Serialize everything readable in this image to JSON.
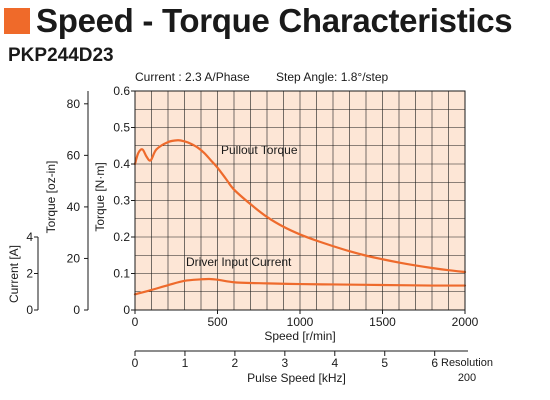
{
  "title": "Speed - Torque Characteristics",
  "model": "PKP244D23",
  "colors": {
    "accent": "#ef6a2a",
    "plot_background": "#fde6d6",
    "curve": "#ee6a2c",
    "grid": "#1a1a1a"
  },
  "chart_data": {
    "type": "line",
    "annotations": {
      "current": "Current : 2.3 A/Phase",
      "step_angle": "Step Angle: 1.8°/step",
      "resolution_label": "Resolution",
      "resolution_value": "200"
    },
    "xlabel": "Speed [r/min]",
    "xlim": [
      0,
      2000
    ],
    "xticks": [
      "0",
      "500",
      "1000",
      "1500",
      "2000"
    ],
    "x2label": "Pulse Speed [kHz]",
    "x2lim": [
      0,
      6.667
    ],
    "x2ticks": [
      "0",
      "1",
      "2",
      "3",
      "4",
      "5",
      "6"
    ],
    "ylabel": "Torque [N·m]",
    "ylim": [
      0,
      0.6
    ],
    "yticks": [
      "0",
      "0.1",
      "0.2",
      "0.3",
      "0.4",
      "0.5",
      "0.6"
    ],
    "y2label": "Torque [oz-in]",
    "y2lim": [
      0,
      84.97
    ],
    "y2ticks": [
      "0",
      "20",
      "40",
      "60",
      "80"
    ],
    "y3label": "Current [A]",
    "y3lim": [
      0,
      4
    ],
    "y3ticks": [
      "0",
      "2",
      "4"
    ],
    "grid": true,
    "series": [
      {
        "name": "Pullout Torque",
        "x": [
          0,
          20,
          45,
          70,
          95,
          130,
          200,
          260,
          300,
          340,
          380,
          420,
          460,
          500,
          550,
          600,
          700,
          800,
          900,
          1000,
          1100,
          1200,
          1300,
          1400,
          1500,
          1600,
          1700,
          1800,
          1900,
          2000
        ],
        "values": [
          0.4,
          0.43,
          0.44,
          0.42,
          0.41,
          0.44,
          0.46,
          0.465,
          0.462,
          0.455,
          0.445,
          0.43,
          0.41,
          0.39,
          0.36,
          0.33,
          0.29,
          0.255,
          0.228,
          0.207,
          0.19,
          0.175,
          0.161,
          0.149,
          0.139,
          0.13,
          0.122,
          0.115,
          0.109,
          0.104
        ]
      },
      {
        "name": "Driver Input Current",
        "x": [
          0,
          100,
          200,
          300,
          400,
          450,
          500,
          600,
          700,
          800,
          1000,
          1200,
          1400,
          1600,
          1800,
          2000
        ],
        "values": [
          0.043,
          0.055,
          0.068,
          0.08,
          0.084,
          0.085,
          0.083,
          0.076,
          0.074,
          0.073,
          0.071,
          0.07,
          0.069,
          0.068,
          0.067,
          0.067
        ]
      }
    ]
  }
}
